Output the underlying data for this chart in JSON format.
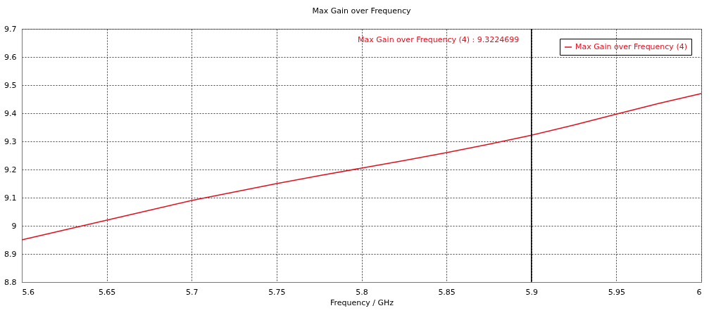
{
  "chart_data": {
    "type": "line",
    "title": "Max Gain over Frequency",
    "xlabel": "Frequency / GHz",
    "x": [
      5.6,
      5.625,
      5.65,
      5.675,
      5.7,
      5.725,
      5.75,
      5.775,
      5.8,
      5.825,
      5.85,
      5.875,
      5.9,
      5.925,
      5.95,
      5.975,
      6.0
    ],
    "series": [
      {
        "name": "Max Gain over Frequency (4)",
        "color": "#e0101e",
        "values": [
          8.95,
          8.985,
          9.02,
          9.055,
          9.09,
          9.12,
          9.15,
          9.178,
          9.205,
          9.232,
          9.26,
          9.29,
          9.322,
          9.358,
          9.397,
          9.435,
          9.47
        ]
      }
    ],
    "xlim": [
      5.6,
      6.0
    ],
    "xticks": [
      5.6,
      5.65,
      5.7,
      5.75,
      5.8,
      5.85,
      5.9,
      5.95,
      6
    ],
    "ylim": [
      8.8,
      9.7
    ],
    "yticks": [
      8.8,
      8.9,
      9,
      9.1,
      9.2,
      9.3,
      9.4,
      9.5,
      9.6,
      9.7
    ],
    "ref_lines": [
      {
        "axis": "x",
        "value": 5.9,
        "color": "#000000"
      }
    ],
    "annotations": [
      "Max Gain over Frequency (4) : 9.3224699"
    ],
    "grid": true,
    "legend": "top right",
    "line_style": "solid",
    "marker": "none"
  }
}
